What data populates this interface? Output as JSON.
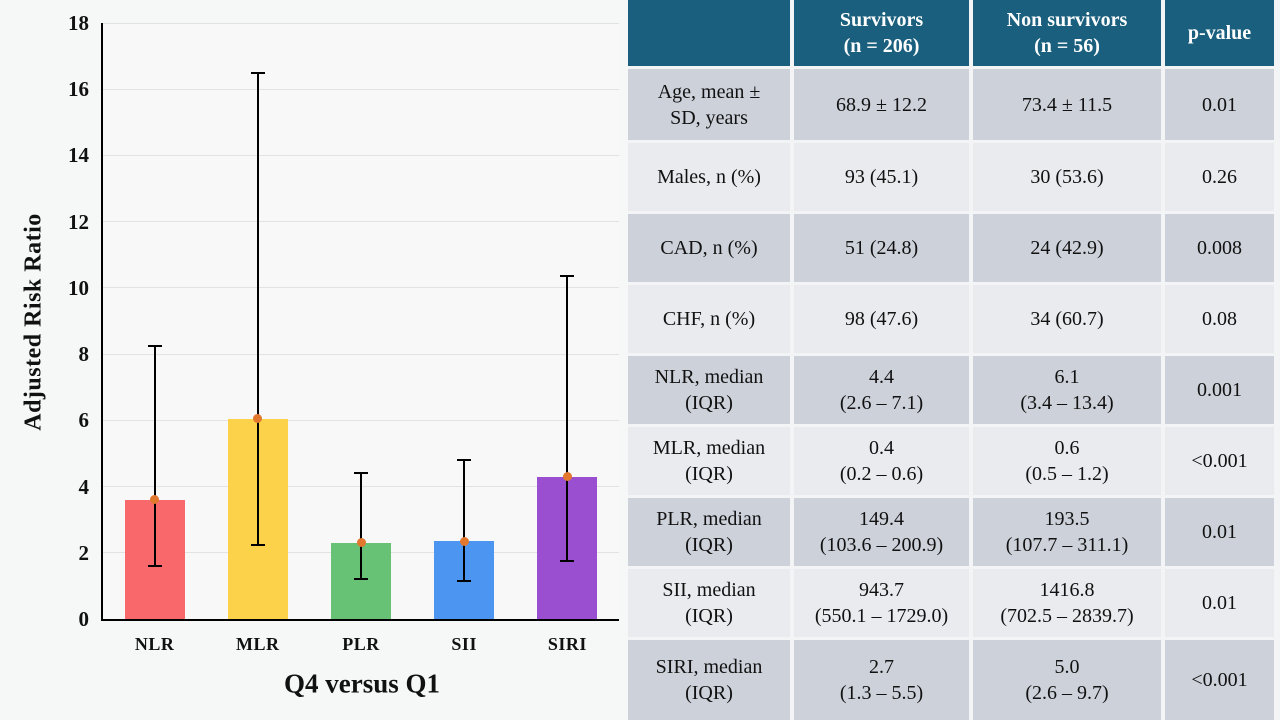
{
  "colors": {
    "page_bg": "#F3F4F5",
    "panel_bg": "#F6F7F7",
    "plot_bg": "#F8F8F8",
    "grid": "#E2E2E3",
    "axis": "#000000",
    "header_bg": "#1A5F7D",
    "header_text": "#FFFFFF",
    "row_dark": "#CDD1DA",
    "row_light": "#E9EBEF"
  },
  "chart_data": {
    "type": "bar",
    "title": "",
    "xlabel": "Q4 versus Q1",
    "ylabel": "Adjusted Risk Ratio",
    "categories": [
      "NLR",
      "MLR",
      "PLR",
      "SII",
      "SIRI"
    ],
    "values": [
      3.6,
      6.05,
      2.3,
      2.35,
      4.3
    ],
    "error_low": [
      1.6,
      2.25,
      1.2,
      1.15,
      1.75
    ],
    "error_high": [
      8.25,
      16.5,
      4.4,
      4.8,
      10.35
    ],
    "ylim": [
      0,
      18
    ],
    "ytick_step": 2,
    "grid": true,
    "legend": "none",
    "bar_colors": [
      "#F9696C",
      "#FBD24A",
      "#68C276",
      "#4C95F1",
      "#9A4FD0"
    ],
    "marker_color": "#E2772E"
  },
  "table": {
    "headers": [
      "",
      "Survivors\n(n = 206)",
      "Non survivors\n(n = 56)",
      "p-value"
    ],
    "rows": [
      {
        "label": "Age, mean ±\nSD, years",
        "survivors": "68.9 ± 12.2",
        "non_survivors": "73.4 ± 11.5",
        "p_value": "0.01"
      },
      {
        "label": "Males, n (%)",
        "survivors": "93 (45.1)",
        "non_survivors": "30 (53.6)",
        "p_value": "0.26"
      },
      {
        "label": "CAD, n (%)",
        "survivors": "51 (24.8)",
        "non_survivors": "24 (42.9)",
        "p_value": "0.008"
      },
      {
        "label": "CHF, n (%)",
        "survivors": "98 (47.6)",
        "non_survivors": "34 (60.7)",
        "p_value": "0.08"
      },
      {
        "label": "NLR, median\n(IQR)",
        "survivors": "4.4\n(2.6 – 7.1)",
        "non_survivors": "6.1\n(3.4 – 13.4)",
        "p_value": "0.001"
      },
      {
        "label": "MLR, median\n(IQR)",
        "survivors": "0.4\n(0.2 – 0.6)",
        "non_survivors": "0.6\n(0.5 – 1.2)",
        "p_value": "<0.001"
      },
      {
        "label": "PLR, median\n(IQR)",
        "survivors": "149.4\n(103.6 – 200.9)",
        "non_survivors": "193.5\n(107.7 – 311.1)",
        "p_value": "0.01"
      },
      {
        "label": "SII, median\n(IQR)",
        "survivors": "943.7\n(550.1 – 1729.0)",
        "non_survivors": "1416.8\n(702.5 – 2839.7)",
        "p_value": "0.01"
      },
      {
        "label": "SIRI, median\n(IQR)",
        "survivors": "2.7\n(1.3 – 5.5)",
        "non_survivors": "5.0\n(2.6 – 9.7)",
        "p_value": "<0.001"
      }
    ]
  }
}
